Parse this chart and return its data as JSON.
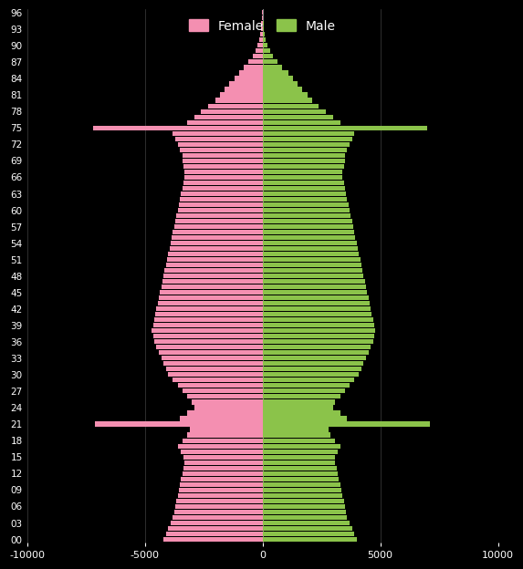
{
  "ages": [
    0,
    1,
    2,
    3,
    4,
    5,
    6,
    7,
    8,
    9,
    10,
    11,
    12,
    13,
    14,
    15,
    16,
    17,
    18,
    19,
    20,
    21,
    22,
    23,
    24,
    25,
    26,
    27,
    28,
    29,
    30,
    31,
    32,
    33,
    34,
    35,
    36,
    37,
    38,
    39,
    40,
    41,
    42,
    43,
    44,
    45,
    46,
    47,
    48,
    49,
    50,
    51,
    52,
    53,
    54,
    55,
    56,
    57,
    58,
    59,
    60,
    61,
    62,
    63,
    64,
    65,
    66,
    67,
    68,
    69,
    70,
    71,
    72,
    73,
    74,
    75,
    76,
    77,
    78,
    79,
    80,
    81,
    82,
    83,
    84,
    85,
    86,
    87,
    88,
    89,
    90,
    91,
    92,
    93,
    94,
    95,
    96
  ],
  "female": [
    -4200,
    -4100,
    -4000,
    -3900,
    -3800,
    -3750,
    -3700,
    -3650,
    -3600,
    -3550,
    -3500,
    -3450,
    -3400,
    -3350,
    -3300,
    -3350,
    -3450,
    -3600,
    -3400,
    -3200,
    -3100,
    -7100,
    -3500,
    -3200,
    -2900,
    -3000,
    -3200,
    -3400,
    -3600,
    -3800,
    -4000,
    -4100,
    -4200,
    -4300,
    -4400,
    -4500,
    -4600,
    -4650,
    -4700,
    -4650,
    -4600,
    -4550,
    -4500,
    -4450,
    -4400,
    -4350,
    -4300,
    -4250,
    -4200,
    -4150,
    -4100,
    -4050,
    -4000,
    -3950,
    -3900,
    -3850,
    -3800,
    -3750,
    -3700,
    -3650,
    -3600,
    -3550,
    -3500,
    -3450,
    -3400,
    -3350,
    -3300,
    -3300,
    -3350,
    -3400,
    -3400,
    -3500,
    -3600,
    -3700,
    -3800,
    -7200,
    -3200,
    -2900,
    -2600,
    -2300,
    -2000,
    -1800,
    -1600,
    -1400,
    -1200,
    -1000,
    -800,
    -600,
    -400,
    -280,
    -200,
    -140,
    -90,
    -60,
    -40,
    -20,
    -5
  ],
  "male": [
    4000,
    3900,
    3800,
    3700,
    3600,
    3550,
    3500,
    3450,
    3400,
    3350,
    3300,
    3250,
    3200,
    3150,
    3100,
    3100,
    3200,
    3300,
    3100,
    2900,
    2800,
    7100,
    3600,
    3300,
    3000,
    3100,
    3300,
    3500,
    3700,
    3900,
    4100,
    4200,
    4300,
    4400,
    4500,
    4600,
    4700,
    4750,
    4800,
    4750,
    4700,
    4650,
    4600,
    4550,
    4500,
    4450,
    4400,
    4350,
    4300,
    4250,
    4200,
    4150,
    4100,
    4050,
    4000,
    3950,
    3900,
    3850,
    3800,
    3750,
    3700,
    3650,
    3600,
    3550,
    3500,
    3450,
    3400,
    3400,
    3450,
    3500,
    3500,
    3600,
    3700,
    3800,
    3900,
    7000,
    3300,
    3000,
    2700,
    2400,
    2100,
    1900,
    1700,
    1500,
    1300,
    1100,
    850,
    650,
    450,
    320,
    220,
    150,
    100,
    70,
    45,
    25,
    8
  ],
  "female_color": "#f48fb1",
  "male_color": "#8bc34a",
  "background_color": "#000000",
  "text_color": "#ffffff",
  "grid_color": "#ffffff",
  "xlim": [
    -10000,
    10000
  ],
  "xticks": [
    -10000,
    -5000,
    0,
    5000,
    10000
  ],
  "ytick_labels": [
    "00",
    "03",
    "06",
    "09",
    "12",
    "15",
    "18",
    "21",
    "24",
    "27",
    "30",
    "33",
    "36",
    "39",
    "42",
    "45",
    "48",
    "51",
    "54",
    "57",
    "60",
    "63",
    "66",
    "69",
    "72",
    "75",
    "78",
    "81",
    "84",
    "87",
    "90",
    "93",
    "96"
  ],
  "bar_height": 0.85,
  "legend_female": "Female",
  "legend_male": "Male",
  "figwidth": 6.0,
  "figheight": 6.8
}
